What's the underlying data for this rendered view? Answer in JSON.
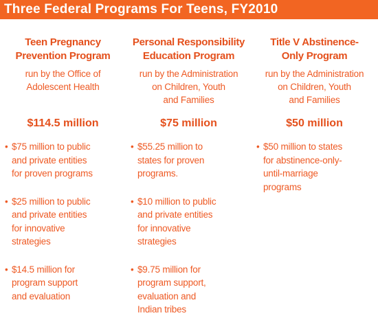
{
  "header": {
    "title": "Three Federal Programs For Teens, FY2010"
  },
  "columns": [
    {
      "title": [
        "Teen Pregnancy",
        "Prevention Program"
      ],
      "agency": [
        "run by the Office of",
        "Adolescent Health"
      ],
      "amount": "$114.5 million",
      "items": [
        [
          "$75 million to public",
          "and private entities",
          "for proven programs"
        ],
        [
          "$25 million to public",
          "and private entities",
          "for innovative",
          "strategies"
        ],
        [
          "$14.5 million for",
          "program support",
          "and evaluation"
        ]
      ]
    },
    {
      "title": [
        "Personal Responsibility",
        "Education Program"
      ],
      "agency": [
        "run by the Administration",
        "on Children, Youth",
        "and Families"
      ],
      "amount": "$75 million",
      "items": [
        [
          "$55.25 million to",
          "states for proven",
          "programs."
        ],
        [
          "$10 million to public",
          "and private entities",
          "for innovative",
          "strategies"
        ],
        [
          "$9.75 million for",
          "program support,",
          "evaluation and",
          "Indian tribes"
        ]
      ]
    },
    {
      "title": [
        "Title V Abstinence-",
        "Only Program"
      ],
      "agency": [
        "run by the Administration",
        "on Children, Youth",
        "and Families"
      ],
      "amount": "$50 million",
      "items": [
        [
          "$50 million to states",
          "for abstinence-only-",
          "until-marriage",
          "programs"
        ]
      ]
    }
  ]
}
